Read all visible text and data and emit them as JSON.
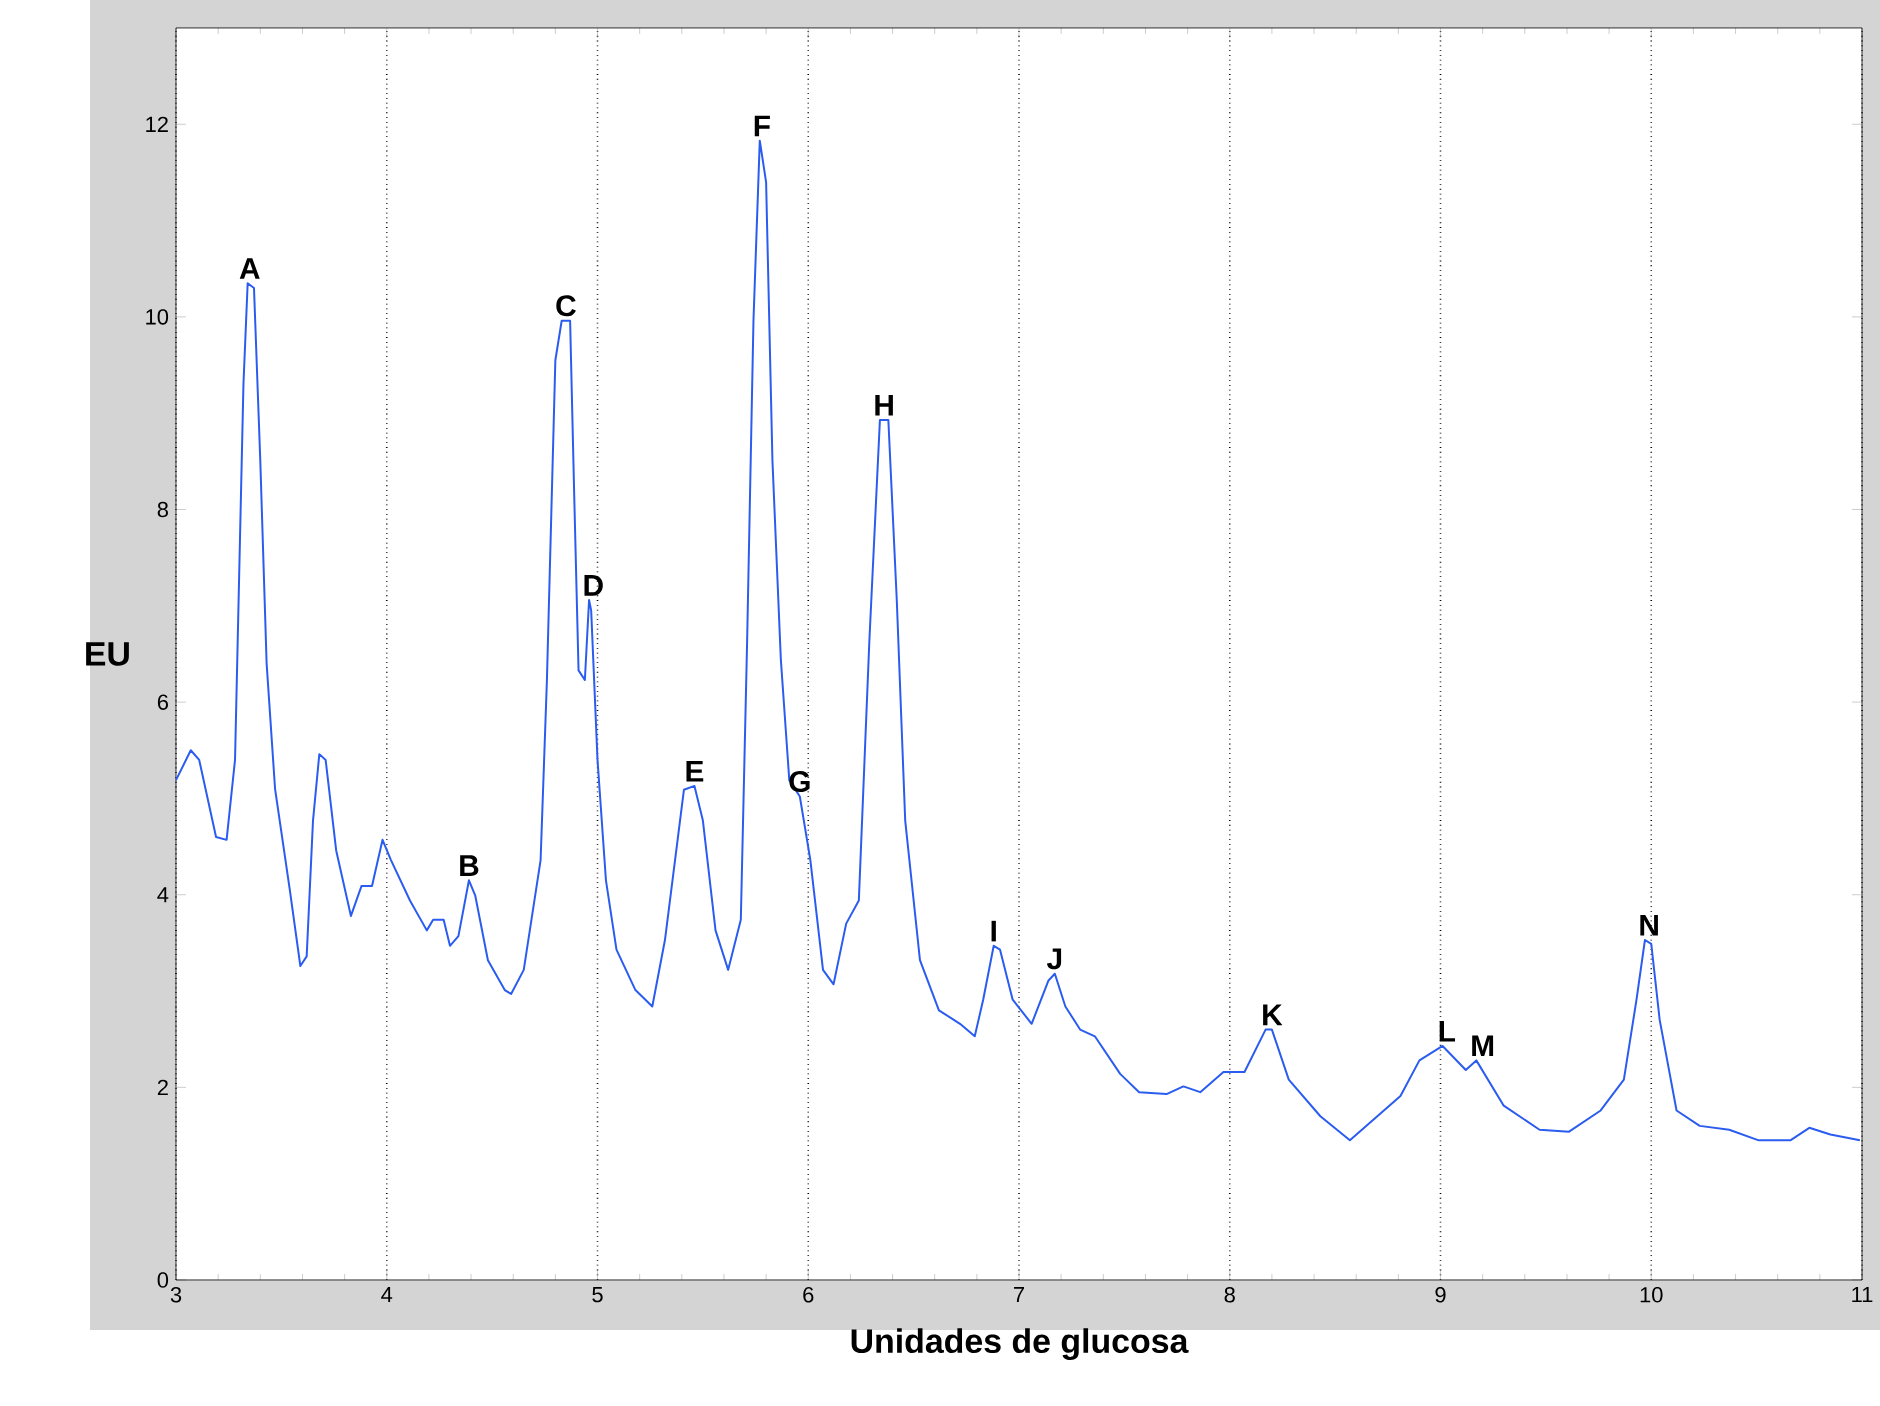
{
  "chart_data": {
    "type": "line",
    "xlabel": "Unidades de glucosa",
    "ylabel": "EU",
    "xlim": [
      3,
      11
    ],
    "ylim": [
      0,
      13
    ],
    "xticks": [
      3,
      4,
      5,
      6,
      7,
      8,
      9,
      10,
      11
    ],
    "yticks": [
      0,
      2,
      4,
      6,
      8,
      10,
      12
    ],
    "grid": "x",
    "series": [
      {
        "color": "#2b5cf0",
        "x": [
          3.0,
          3.07,
          3.11,
          3.19,
          3.24,
          3.28,
          3.32,
          3.34,
          3.37,
          3.4,
          3.43,
          3.47,
          3.54,
          3.59,
          3.62,
          3.65,
          3.68,
          3.71,
          3.76,
          3.83,
          3.88,
          3.93,
          3.98,
          4.02,
          4.11,
          4.19,
          4.22,
          4.27,
          4.3,
          4.34,
          4.39,
          4.42,
          4.48,
          4.56,
          4.59,
          4.65,
          4.73,
          4.76,
          4.8,
          4.83,
          4.87,
          4.89,
          4.91,
          4.94,
          4.96,
          4.97,
          5.0,
          5.04,
          5.09,
          5.18,
          5.26,
          5.32,
          5.41,
          5.46,
          5.5,
          5.56,
          5.62,
          5.68,
          5.71,
          5.74,
          5.77,
          5.8,
          5.83,
          5.87,
          5.91,
          5.96,
          6.01,
          6.07,
          6.12,
          6.18,
          6.24,
          6.29,
          6.34,
          6.38,
          6.42,
          6.46,
          6.53,
          6.62,
          6.72,
          6.79,
          6.83,
          6.88,
          6.91,
          6.97,
          7.06,
          7.14,
          7.17,
          7.22,
          7.29,
          7.36,
          7.48,
          7.57,
          7.7,
          7.78,
          7.86,
          7.97,
          8.07,
          8.17,
          8.2,
          8.28,
          8.43,
          8.57,
          8.81,
          8.9,
          9.01,
          9.12,
          9.17,
          9.3,
          9.47,
          9.61,
          9.76,
          9.87,
          9.93,
          9.97,
          10.0,
          10.04,
          10.12,
          10.23,
          10.37,
          10.51,
          10.66,
          10.75,
          10.85,
          10.99
        ],
        "values": [
          5.19,
          5.5,
          5.4,
          4.6,
          4.57,
          5.4,
          9.3,
          10.35,
          10.3,
          8.5,
          6.4,
          5.1,
          4.05,
          3.26,
          3.36,
          4.77,
          5.46,
          5.4,
          4.46,
          3.78,
          4.09,
          4.09,
          4.57,
          4.36,
          3.94,
          3.63,
          3.74,
          3.74,
          3.47,
          3.57,
          4.15,
          3.99,
          3.32,
          3.01,
          2.97,
          3.22,
          4.36,
          6.23,
          9.55,
          9.96,
          9.96,
          8.1,
          6.33,
          6.23,
          7.06,
          6.95,
          5.4,
          4.15,
          3.43,
          3.01,
          2.84,
          3.53,
          5.09,
          5.13,
          4.77,
          3.63,
          3.22,
          3.74,
          6.64,
          9.96,
          11.83,
          11.4,
          8.51,
          6.44,
          5.19,
          5.02,
          4.36,
          3.22,
          3.07,
          3.7,
          3.94,
          6.64,
          8.93,
          8.93,
          7.06,
          4.77,
          3.32,
          2.8,
          2.66,
          2.53,
          2.91,
          3.47,
          3.43,
          2.91,
          2.66,
          3.11,
          3.18,
          2.84,
          2.6,
          2.53,
          2.14,
          1.95,
          1.93,
          2.01,
          1.95,
          2.16,
          2.16,
          2.6,
          2.6,
          2.08,
          1.7,
          1.45,
          1.91,
          2.28,
          2.43,
          2.18,
          2.28,
          1.81,
          1.56,
          1.54,
          1.76,
          2.08,
          2.91,
          3.53,
          3.49,
          2.7,
          1.76,
          1.6,
          1.56,
          1.45,
          1.45,
          1.58,
          1.51,
          1.45
        ]
      }
    ],
    "annotations": [
      {
        "text": "A",
        "x": 3.35,
        "y": 10.35
      },
      {
        "text": "B",
        "x": 4.39,
        "y": 4.15
      },
      {
        "text": "C",
        "x": 4.85,
        "y": 9.96
      },
      {
        "text": "D",
        "x": 4.98,
        "y": 7.06
      },
      {
        "text": "E",
        "x": 5.46,
        "y": 5.13
      },
      {
        "text": "F",
        "x": 5.78,
        "y": 11.83
      },
      {
        "text": "G",
        "x": 5.96,
        "y": 5.02
      },
      {
        "text": "H",
        "x": 6.36,
        "y": 8.93
      },
      {
        "text": "I",
        "x": 6.88,
        "y": 3.47
      },
      {
        "text": "J",
        "x": 7.17,
        "y": 3.18
      },
      {
        "text": "K",
        "x": 8.2,
        "y": 2.6
      },
      {
        "text": "L",
        "x": 9.03,
        "y": 2.43
      },
      {
        "text": "M",
        "x": 9.2,
        "y": 2.28
      },
      {
        "text": "N",
        "x": 9.99,
        "y": 3.53
      }
    ]
  }
}
